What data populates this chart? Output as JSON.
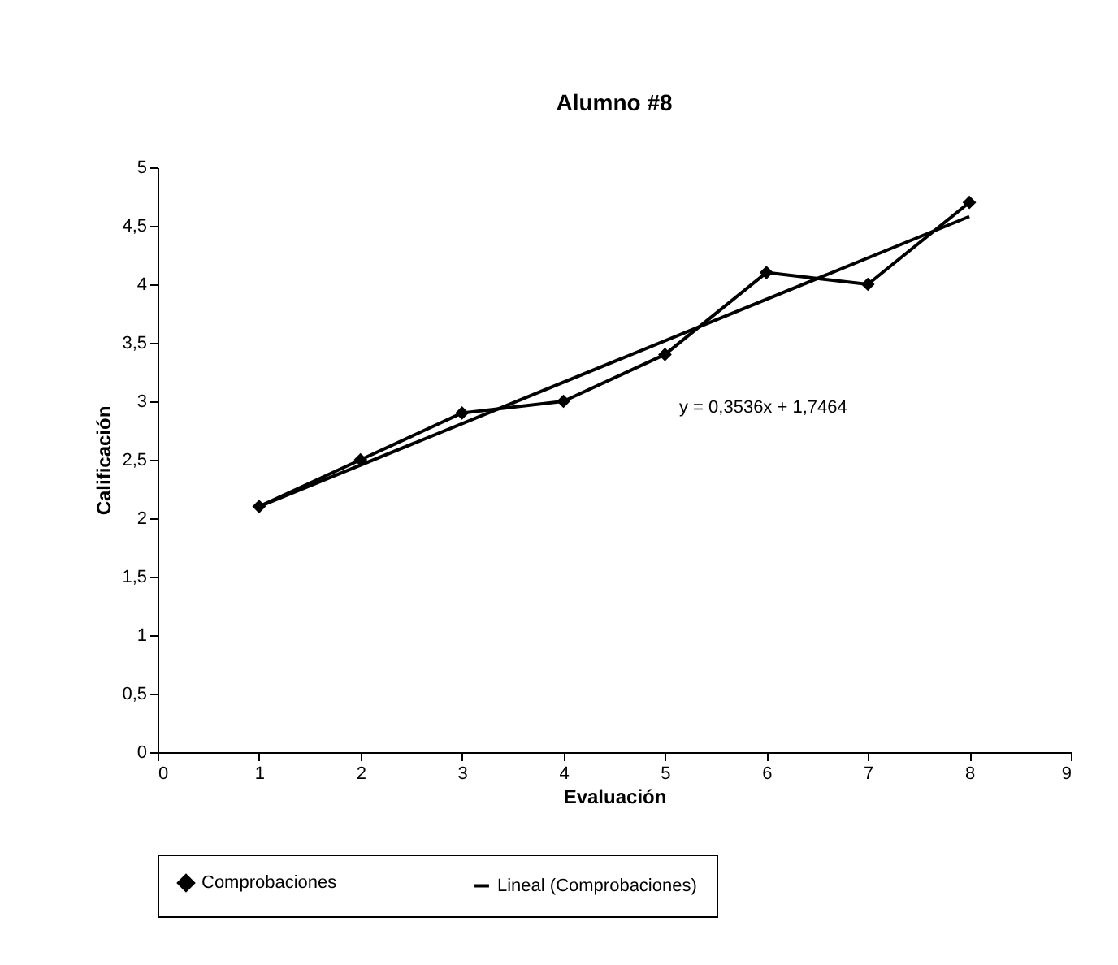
{
  "chart_data": {
    "type": "line",
    "title": "Alumno #8",
    "xlabel": "Evaluación",
    "ylabel": "Calificación",
    "x": [
      1,
      2,
      3,
      4,
      5,
      6,
      7,
      8
    ],
    "series": [
      {
        "name": "Comprobaciones",
        "color": "#000000",
        "marker": "diamond",
        "values": [
          2.1,
          2.5,
          2.9,
          3.0,
          3.4,
          4.1,
          4.0,
          4.7
        ]
      },
      {
        "name": "Lineal (Comprobaciones)",
        "color": "#000000",
        "type": "line",
        "marker": "none",
        "x": [
          1,
          8
        ],
        "values": [
          2.1,
          4.58
        ]
      }
    ],
    "xlim": [
      0,
      9
    ],
    "xticks": [
      0,
      1,
      2,
      3,
      4,
      5,
      6,
      7,
      8,
      9
    ],
    "ylim": [
      0,
      5
    ],
    "yticks": [
      0,
      {
        "value": 0.5,
        "label": "0,5"
      },
      1,
      {
        "value": 1.5,
        "label": "1,5"
      },
      2,
      {
        "value": 2.5,
        "label": "2,5"
      },
      3,
      {
        "value": 3.5,
        "label": "3,5"
      },
      4,
      {
        "value": 4.5,
        "label": "4,5"
      },
      5
    ],
    "annotations": [
      "y = 0,3536x + 1,7464"
    ],
    "legend": "bottom",
    "grid": false,
    "line_style": "solid"
  }
}
